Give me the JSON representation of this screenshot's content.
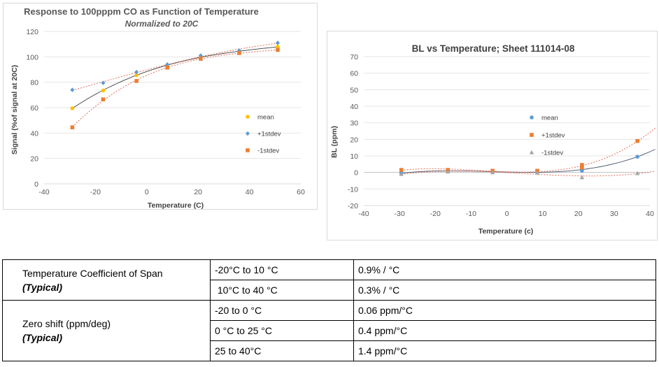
{
  "charts": [
    {
      "title": "Response to 100pppm CO  as Function of Temperature",
      "subtitle": "Normalized to 20C",
      "xlabel": "Temperature (C)",
      "ylabel": "Signal (%of signal at 20C)",
      "x_ticks": [
        "-40",
        "-20",
        "0",
        "20",
        "40",
        "60"
      ],
      "y_ticks": [
        "0",
        "20",
        "40",
        "60",
        "80",
        "100",
        "120"
      ],
      "legend": [
        "mean",
        "+1stdev",
        "-1stdev"
      ]
    },
    {
      "title": "BL vs Temperature; Sheet 111014-08",
      "xlabel": "Temperature (c)",
      "ylabel": "BL (ppm)",
      "x_ticks": [
        "-40",
        "-30",
        "-20",
        "-10",
        "0",
        "10",
        "20",
        "30",
        "40"
      ],
      "y_ticks": [
        "-20",
        "-10",
        "0",
        "10",
        "20",
        "30",
        "40",
        "50",
        "60",
        "70"
      ],
      "legend": [
        "mean",
        "+1stdev",
        "-1stdev"
      ]
    }
  ],
  "chart_data": [
    {
      "type": "scatter",
      "title": "Response to 100pppm CO  as Function of Temperature",
      "subtitle": "Normalized to 20C",
      "xlabel": "Temperature (C)",
      "ylabel": "Signal (%of signal at 20C)",
      "xlim": [
        -40,
        60
      ],
      "ylim": [
        0,
        120
      ],
      "grid": "horizontal",
      "legend_position": "right",
      "trendlines": true,
      "series": [
        {
          "name": "mean",
          "color": "#ffc000",
          "marker": "circle",
          "trend_color": "#404040",
          "x": [
            -29,
            -17,
            -4,
            8,
            21,
            36,
            51
          ],
          "y": [
            59.5,
            73.5,
            85.5,
            93.5,
            100,
            104,
            108
          ]
        },
        {
          "name": "+1stdev",
          "color": "#5b9bd5",
          "marker": "diamond",
          "trend_color": "#e46c5a",
          "x": [
            -29,
            -17,
            -4,
            8,
            21,
            36,
            51
          ],
          "y": [
            74,
            79.5,
            88,
            94,
            101,
            105,
            111
          ]
        },
        {
          "name": "-1stdev",
          "color": "#ed7d31",
          "marker": "square",
          "trend_color": "#e46c5a",
          "x": [
            -29,
            -17,
            -4,
            8,
            21,
            36,
            51
          ],
          "y": [
            44.5,
            66.5,
            81,
            91.5,
            98.5,
            103,
            105.5
          ]
        }
      ]
    },
    {
      "type": "scatter",
      "title": "BL vs Temperature; Sheet 111014-08",
      "xlabel": "Temperature (c)",
      "ylabel": "BL (ppm)",
      "xlim": [
        -40,
        40
      ],
      "ylim": [
        -20,
        70
      ],
      "grid": "horizontal",
      "legend_position": "right",
      "trendlines": true,
      "series": [
        {
          "name": "mean",
          "color": "#5b9bd5",
          "marker": "circle",
          "trend_color": "#44546a",
          "x": [
            -29.5,
            -16.5,
            -4,
            8.5,
            21,
            21,
            36.5
          ],
          "y": [
            -0.5,
            1,
            0.5,
            0,
            1,
            2.5,
            9.5
          ]
        },
        {
          "name": "+1stdev",
          "color": "#ed7d31",
          "marker": "square",
          "trend_color": "#e46c5a",
          "x": [
            -29.5,
            -16.5,
            -4,
            8.5,
            21,
            21,
            36.5
          ],
          "y": [
            1.5,
            1.5,
            1,
            1,
            3,
            4.5,
            19
          ]
        },
        {
          "name": "-1stdev",
          "color": "#a5a5a5",
          "marker": "triangle",
          "trend_color": "#e46c5a",
          "x": [
            -29.5,
            -16.5,
            -4,
            8.5,
            21,
            36.5
          ],
          "y": [
            -1,
            0.5,
            0,
            0,
            -3,
            -0.5
          ]
        }
      ]
    }
  ],
  "table": {
    "rows": [
      {
        "param": "Temperature Coefficient of Span",
        "typical": "(Typical)",
        "ranges": [
          {
            "range": "-20°C to 10 °C",
            "value": "0.9% / °C"
          },
          {
            "range": " 10°C to 40 °C",
            "value": "0.3% / °C"
          }
        ]
      },
      {
        "param": "Zero shift (ppm/deg)",
        "typical": "(Typical)",
        "ranges": [
          {
            "range": "-20 to 0 °C",
            "value": "0.06 ppm/°C"
          },
          {
            "range": "0 °C to 25 °C",
            "value": "0.4 ppm/°C"
          },
          {
            "range": "25 to 40°C",
            "value": "1.4 ppm/°C"
          }
        ]
      }
    ]
  }
}
